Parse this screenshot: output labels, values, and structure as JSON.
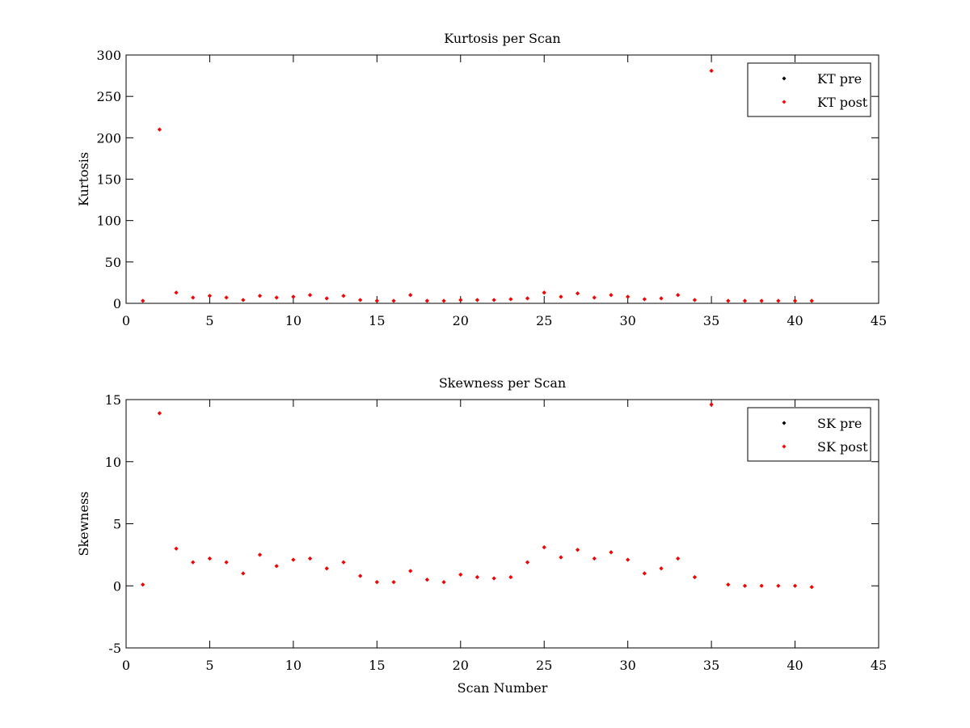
{
  "chart_data": [
    {
      "type": "scatter",
      "title": "Kurtosis per Scan",
      "xlabel": "",
      "ylabel": "Kurtosis",
      "xlim": [
        0,
        45
      ],
      "ylim": [
        0,
        300
      ],
      "xticks": [
        0,
        5,
        10,
        15,
        20,
        25,
        30,
        35,
        40,
        45
      ],
      "yticks": [
        0,
        50,
        100,
        150,
        200,
        250,
        300
      ],
      "grid": false,
      "legend_position": "top-right",
      "series": [
        {
          "name": "KT pre",
          "color": "#000000",
          "x": [
            1,
            2,
            3,
            4,
            5,
            6,
            7,
            8,
            9,
            10,
            11,
            12,
            13,
            14,
            15,
            16,
            17,
            18,
            19,
            20,
            21,
            22,
            23,
            24,
            25,
            26,
            27,
            28,
            29,
            30,
            31,
            32,
            33,
            34,
            35,
            36,
            37,
            38,
            39,
            40,
            41
          ],
          "y": [
            3,
            210,
            13,
            7,
            9,
            7,
            4,
            9,
            7,
            8,
            10,
            6,
            9,
            4,
            3,
            3,
            10,
            3,
            3,
            4,
            4,
            4,
            5,
            6,
            13,
            8,
            12,
            7,
            10,
            8,
            5,
            6,
            10,
            4,
            281,
            3,
            3,
            3,
            3,
            3,
            3
          ]
        },
        {
          "name": "KT post",
          "color": "#ff0000",
          "x": [
            1,
            2,
            3,
            4,
            5,
            6,
            7,
            8,
            9,
            10,
            11,
            12,
            13,
            14,
            15,
            16,
            17,
            18,
            19,
            20,
            21,
            22,
            23,
            24,
            25,
            26,
            27,
            28,
            29,
            30,
            31,
            32,
            33,
            34,
            35,
            36,
            37,
            38,
            39,
            40,
            41
          ],
          "y": [
            3,
            210,
            13,
            7,
            9,
            7,
            4,
            9,
            7,
            8,
            10,
            6,
            9,
            4,
            3,
            3,
            10,
            3,
            3,
            4,
            4,
            4,
            5,
            6,
            13,
            8,
            12,
            7,
            10,
            8,
            5,
            6,
            10,
            4,
            281,
            3,
            3,
            3,
            3,
            3,
            3
          ]
        }
      ]
    },
    {
      "type": "scatter",
      "title": "Skewness per Scan",
      "xlabel": "Scan Number",
      "ylabel": "Skewness",
      "xlim": [
        0,
        45
      ],
      "ylim": [
        -5,
        15
      ],
      "xticks": [
        0,
        5,
        10,
        15,
        20,
        25,
        30,
        35,
        40,
        45
      ],
      "yticks": [
        -5,
        0,
        5,
        10,
        15
      ],
      "grid": false,
      "legend_position": "top-right",
      "series": [
        {
          "name": "SK pre",
          "color": "#000000",
          "x": [
            1,
            2,
            3,
            4,
            5,
            6,
            7,
            8,
            9,
            10,
            11,
            12,
            13,
            14,
            15,
            16,
            17,
            18,
            19,
            20,
            21,
            22,
            23,
            24,
            25,
            26,
            27,
            28,
            29,
            30,
            31,
            32,
            33,
            34,
            35,
            36,
            37,
            38,
            39,
            40,
            41
          ],
          "y": [
            0.1,
            13.9,
            3.0,
            1.9,
            2.2,
            1.9,
            1.0,
            2.5,
            1.6,
            2.1,
            2.2,
            1.4,
            1.9,
            0.8,
            0.3,
            0.3,
            1.2,
            0.5,
            0.3,
            0.9,
            0.7,
            0.6,
            0.7,
            1.9,
            3.1,
            2.3,
            2.9,
            2.2,
            2.7,
            2.1,
            1.0,
            1.4,
            2.2,
            0.7,
            14.6,
            0.1,
            0.0,
            0.0,
            0.0,
            0.0,
            -0.1
          ]
        },
        {
          "name": "SK post",
          "color": "#ff0000",
          "x": [
            1,
            2,
            3,
            4,
            5,
            6,
            7,
            8,
            9,
            10,
            11,
            12,
            13,
            14,
            15,
            16,
            17,
            18,
            19,
            20,
            21,
            22,
            23,
            24,
            25,
            26,
            27,
            28,
            29,
            30,
            31,
            32,
            33,
            34,
            35,
            36,
            37,
            38,
            39,
            40,
            41
          ],
          "y": [
            0.1,
            13.9,
            3.0,
            1.9,
            2.2,
            1.9,
            1.0,
            2.5,
            1.6,
            2.1,
            2.2,
            1.4,
            1.9,
            0.8,
            0.3,
            0.3,
            1.2,
            0.5,
            0.3,
            0.9,
            0.7,
            0.6,
            0.7,
            1.9,
            3.1,
            2.3,
            2.9,
            2.2,
            2.7,
            2.1,
            1.0,
            1.4,
            2.2,
            0.7,
            14.6,
            0.1,
            0.0,
            0.0,
            0.0,
            0.0,
            -0.1
          ]
        }
      ]
    }
  ]
}
